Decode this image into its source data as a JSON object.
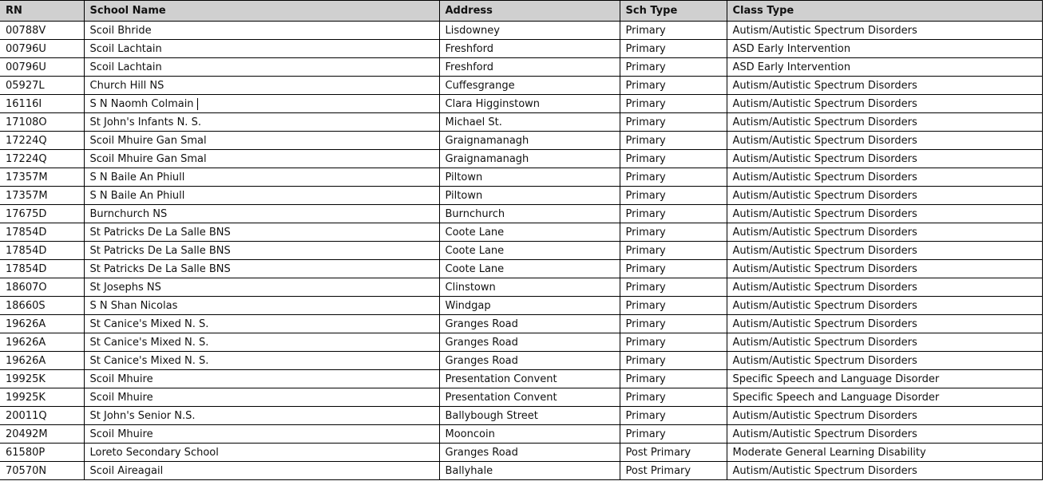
{
  "headers": [
    "RN",
    "School Name",
    "Address",
    "Sch Type",
    "Class Type"
  ],
  "rows": [
    [
      "00788V",
      "Scoil Bhride",
      "Lisdowney",
      "Primary",
      "Autism/Autistic Spectrum Disorders"
    ],
    [
      "00796U",
      "Scoil Lachtain",
      "Freshford",
      "Primary",
      "ASD Early Intervention"
    ],
    [
      "00796U",
      "Scoil Lachtain",
      "Freshford",
      "Primary",
      "ASD Early Intervention"
    ],
    [
      "05927L",
      "Church Hill NS",
      "Cuffesgrange",
      "Primary",
      "Autism/Autistic Spectrum Disorders"
    ],
    [
      "16116I",
      "S N Naomh Colmain",
      "Clara Higginstown",
      "Primary",
      "Autism/Autistic Spectrum Disorders"
    ],
    [
      "17108O",
      "St John's Infants N. S.",
      "Michael St.",
      "Primary",
      "Autism/Autistic Spectrum Disorders"
    ],
    [
      "17224Q",
      "Scoil Mhuire Gan Smal",
      "Graignamanagh",
      "Primary",
      "Autism/Autistic Spectrum Disorders"
    ],
    [
      "17224Q",
      "Scoil Mhuire Gan Smal",
      "Graignamanagh",
      "Primary",
      "Autism/Autistic Spectrum Disorders"
    ],
    [
      "17357M",
      "S N Baile An Phiull",
      "Piltown",
      "Primary",
      "Autism/Autistic Spectrum Disorders"
    ],
    [
      "17357M",
      "S N Baile An Phiull",
      "Piltown",
      "Primary",
      "Autism/Autistic Spectrum Disorders"
    ],
    [
      "17675D",
      "Burnchurch NS",
      "Burnchurch",
      "Primary",
      "Autism/Autistic Spectrum Disorders"
    ],
    [
      "17854D",
      "St Patricks De La Salle BNS",
      "Coote Lane",
      "Primary",
      "Autism/Autistic Spectrum Disorders"
    ],
    [
      "17854D",
      "St Patricks De La Salle BNS",
      "Coote Lane",
      "Primary",
      "Autism/Autistic Spectrum Disorders"
    ],
    [
      "17854D",
      "St Patricks De La Salle BNS",
      "Coote Lane",
      "Primary",
      "Autism/Autistic Spectrum Disorders"
    ],
    [
      "18607O",
      "St Josephs NS",
      "Clinstown",
      "Primary",
      "Autism/Autistic Spectrum Disorders"
    ],
    [
      "18660S",
      "S N Shan Nicolas",
      "Windgap",
      "Primary",
      "Autism/Autistic Spectrum Disorders"
    ],
    [
      "19626A",
      "St Canice's Mixed N. S.",
      "Granges Road",
      "Primary",
      "Autism/Autistic Spectrum Disorders"
    ],
    [
      "19626A",
      "St Canice's Mixed N. S.",
      "Granges Road",
      "Primary",
      "Autism/Autistic Spectrum Disorders"
    ],
    [
      "19626A",
      "St Canice's Mixed N. S.",
      "Granges Road",
      "Primary",
      "Autism/Autistic Spectrum Disorders"
    ],
    [
      "19925K",
      "Scoil Mhuire",
      "Presentation Convent",
      "Primary",
      "Specific Speech and Language Disorder"
    ],
    [
      "19925K",
      "Scoil Mhuire",
      "Presentation Convent",
      "Primary",
      "Specific Speech and Language Disorder"
    ],
    [
      "20011Q",
      "St John's Senior N.S.",
      "Ballybough Street",
      "Primary",
      "Autism/Autistic Spectrum Disorders"
    ],
    [
      "20492M",
      "Scoil Mhuire",
      "Mooncoin",
      "Primary",
      "Autism/Autistic Spectrum Disorders"
    ],
    [
      "61580P",
      "Loreto Secondary School",
      "Granges Road",
      "Post Primary",
      "Moderate General Learning Disability"
    ],
    [
      "70570N",
      "Scoil Aireagail",
      "Ballyhale",
      "Post Primary",
      "Autism/Autistic Spectrum Disorders"
    ]
  ]
}
